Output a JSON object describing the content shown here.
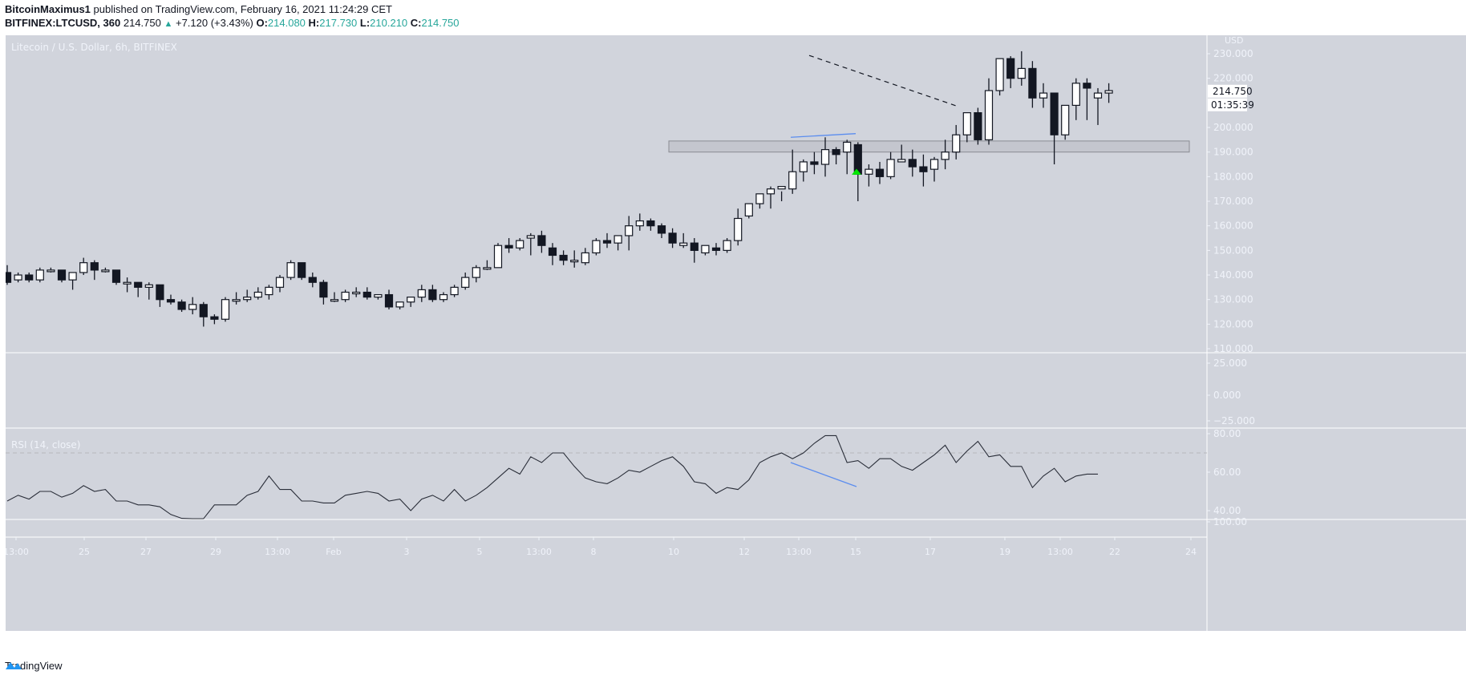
{
  "header": {
    "author": "BitcoinMaximus1",
    "published_text": " published on TradingView.com, February 16, 2021 11:24:29 CET",
    "symbol": "BITFINEX:LTCUSD, 360",
    "last": "214.750",
    "change": "+7.120 (+3.43%)",
    "o_label": "O:",
    "o_value": "214.080",
    "h_label": "H:",
    "h_value": "217.730",
    "l_label": "L:",
    "l_value": "210.210",
    "c_label": "C:",
    "c_value": "214.750"
  },
  "main_pane": {
    "legend": "Litecoin / U.S. Dollar, 6h, BITFINEX",
    "currency": "USD",
    "price_ticks": [
      "230.000",
      "220.000",
      "200.000",
      "190.000",
      "180.000",
      "170.000",
      "160.000",
      "150.000",
      "140.000",
      "130.000",
      "120.000",
      "110.000"
    ],
    "last_price_label": "214.750",
    "countdown": "01:35:39"
  },
  "middle_pane": {
    "ticks": [
      "25.000",
      "0.000",
      "−25.000"
    ]
  },
  "rsi_pane": {
    "legend": "RSI (14, close)",
    "ticks": [
      "80.00",
      "60.00",
      "40.00",
      "100.00"
    ]
  },
  "time_axis": {
    "labels": [
      {
        "x": 20,
        "t": "13:00"
      },
      {
        "x": 105,
        "t": "25"
      },
      {
        "x": 182,
        "t": "27"
      },
      {
        "x": 269,
        "t": "29"
      },
      {
        "x": 346,
        "t": "13:00"
      },
      {
        "x": 416,
        "t": "Feb"
      },
      {
        "x": 507,
        "t": "3"
      },
      {
        "x": 598,
        "t": "5"
      },
      {
        "x": 672,
        "t": "13:00"
      },
      {
        "x": 740,
        "t": "8"
      },
      {
        "x": 840,
        "t": "10"
      },
      {
        "x": 928,
        "t": "12"
      },
      {
        "x": 996,
        "t": "13:00"
      },
      {
        "x": 1067,
        "t": "15"
      },
      {
        "x": 1160,
        "t": "17"
      },
      {
        "x": 1253,
        "t": "19"
      },
      {
        "x": 1322,
        "t": "13:00"
      },
      {
        "x": 1390,
        "t": "22"
      },
      {
        "x": 1485,
        "t": "24"
      }
    ]
  },
  "footer": {
    "brand": "TradingView"
  },
  "colors": {
    "background": "#d1d4dc",
    "up_candle": "#ffffff",
    "down_candle": "#131722",
    "accent_green": "#26a69a",
    "arrow_green": "#00e600",
    "divergence_line": "#5b8def",
    "support_zone": "#c4c6ce"
  },
  "chart_data": {
    "type": "candlestick",
    "title": "Litecoin / U.S. Dollar, 6h, BITFINEX",
    "symbol": "BITFINEX:LTCUSD",
    "timeframe": "6h",
    "ylabel": "USD",
    "ylim": [
      107,
      233
    ],
    "candles": [
      [
        141,
        144,
        136,
        137
      ],
      [
        138,
        141,
        137,
        140
      ],
      [
        140,
        141,
        137,
        138
      ],
      [
        138,
        143,
        137,
        142
      ],
      [
        142,
        143,
        141,
        142
      ],
      [
        142,
        142,
        137,
        138
      ],
      [
        138,
        141,
        134,
        141
      ],
      [
        141,
        147,
        140,
        145
      ],
      [
        145,
        146,
        138,
        142
      ],
      [
        142,
        143,
        141,
        142
      ],
      [
        142,
        142,
        136,
        137
      ],
      [
        137,
        139,
        133,
        137
      ],
      [
        137,
        137,
        131,
        135
      ],
      [
        135,
        137,
        130,
        136
      ],
      [
        136,
        136,
        127,
        130
      ],
      [
        130,
        132,
        128,
        129
      ],
      [
        129,
        130,
        125,
        126
      ],
      [
        126,
        131,
        124,
        128
      ],
      [
        128,
        129,
        119,
        123
      ],
      [
        123,
        124,
        120,
        122
      ],
      [
        122,
        131,
        121,
        130
      ],
      [
        130,
        133,
        128,
        130
      ],
      [
        130,
        134,
        129,
        131
      ],
      [
        131,
        135,
        130,
        133
      ],
      [
        132,
        136,
        130,
        135
      ],
      [
        135,
        140,
        133,
        139
      ],
      [
        139,
        146,
        138,
        145
      ],
      [
        145,
        145,
        138,
        139
      ],
      [
        139,
        141,
        135,
        137
      ],
      [
        137,
        138,
        128,
        131
      ],
      [
        130,
        133,
        129,
        130
      ],
      [
        130,
        134,
        129,
        133
      ],
      [
        133,
        135,
        131,
        133
      ],
      [
        133,
        135,
        130,
        131
      ],
      [
        131,
        132,
        130,
        132
      ],
      [
        132,
        134,
        126,
        127
      ],
      [
        127,
        129,
        126,
        129
      ],
      [
        129,
        131,
        127,
        131
      ],
      [
        131,
        136,
        129,
        134
      ],
      [
        134,
        136,
        129,
        130
      ],
      [
        130,
        133,
        129,
        132
      ],
      [
        132,
        136,
        131,
        135
      ],
      [
        135,
        141,
        134,
        139
      ],
      [
        139,
        144,
        137,
        143
      ],
      [
        143,
        146,
        142,
        143
      ],
      [
        143,
        153,
        143,
        152
      ],
      [
        152,
        155,
        149,
        151
      ],
      [
        151,
        155,
        150,
        154
      ],
      [
        155,
        157,
        148,
        156
      ],
      [
        156,
        158,
        149,
        152
      ],
      [
        151,
        153,
        144,
        148
      ],
      [
        148,
        150,
        144,
        146
      ],
      [
        146,
        150,
        143,
        146
      ],
      [
        145,
        151,
        144,
        149
      ],
      [
        149,
        155,
        148,
        154
      ],
      [
        154,
        157,
        151,
        153
      ],
      [
        153,
        156,
        150,
        156
      ],
      [
        156,
        164,
        150,
        160
      ],
      [
        160,
        165,
        158,
        162
      ],
      [
        162,
        163,
        158,
        160
      ],
      [
        160,
        161,
        155,
        157
      ],
      [
        157,
        159,
        151,
        153
      ],
      [
        152,
        157,
        151,
        153
      ],
      [
        153,
        155,
        145,
        150
      ],
      [
        149,
        152,
        148,
        152
      ],
      [
        151,
        153,
        148,
        150
      ],
      [
        150,
        155,
        149,
        154
      ],
      [
        154,
        167,
        152,
        163
      ],
      [
        164,
        168,
        163,
        169
      ],
      [
        169,
        173,
        167,
        173
      ],
      [
        173,
        176,
        167,
        175
      ],
      [
        175,
        174,
        170,
        176
      ],
      [
        175,
        191,
        173,
        182
      ],
      [
        182,
        187,
        178,
        186
      ],
      [
        186,
        190,
        181,
        185
      ],
      [
        185,
        196,
        180,
        191
      ],
      [
        191,
        192,
        185,
        189
      ],
      [
        190,
        195,
        181,
        194
      ],
      [
        193,
        194,
        170,
        181
      ],
      [
        181,
        185,
        176,
        183
      ],
      [
        183,
        186,
        177,
        180
      ],
      [
        180,
        190,
        179,
        187
      ],
      [
        186,
        193,
        186,
        187
      ],
      [
        187,
        191,
        180,
        184
      ],
      [
        184,
        189,
        176,
        182
      ],
      [
        183,
        188,
        178,
        187
      ],
      [
        187,
        195,
        183,
        190
      ],
      [
        190,
        201,
        187,
        197
      ],
      [
        197,
        206,
        194,
        206
      ],
      [
        206,
        208,
        193,
        195
      ],
      [
        195,
        220,
        193,
        215
      ],
      [
        215,
        227,
        213,
        228
      ],
      [
        228,
        229,
        216,
        220
      ],
      [
        220,
        231,
        217,
        224
      ],
      [
        224,
        227,
        208,
        212
      ],
      [
        212,
        218,
        208,
        214
      ],
      [
        214,
        213,
        185,
        197
      ],
      [
        197,
        209,
        195,
        209
      ],
      [
        209,
        220,
        203,
        218
      ],
      [
        218,
        220,
        203,
        216
      ],
      [
        212,
        216,
        201,
        214
      ],
      [
        214,
        218,
        210,
        215
      ]
    ],
    "annotations": {
      "descending_trendline": {
        "from": [
          1009,
          229
        ],
        "to": [
          1195,
          207
        ],
        "style": "dashed"
      },
      "support_zone": {
        "from_price": 190,
        "to_price": 194.5
      },
      "price_divergence_line": {
        "from_price": 196,
        "to_price": 197.5
      },
      "rsi_divergence_line": {
        "from": 65,
        "to": 52
      },
      "green_arrow_at_price": 184
    },
    "rsi": [
      45,
      48,
      46,
      50,
      50,
      47,
      49,
      53,
      50,
      51,
      45,
      45,
      43,
      43,
      42,
      38,
      36,
      35,
      34,
      43,
      43,
      43,
      48,
      50,
      58,
      51,
      51,
      45,
      45,
      44,
      44,
      48,
      49,
      50,
      49,
      45,
      46,
      40,
      46,
      48,
      45,
      51,
      45,
      48,
      52,
      57,
      62,
      59,
      68,
      65,
      70,
      70,
      63,
      57,
      55,
      54,
      57,
      61,
      60,
      63,
      66,
      68,
      63,
      55,
      54,
      49,
      52,
      51,
      56,
      65,
      68,
      70,
      67,
      70,
      75,
      79,
      79,
      65,
      66,
      62,
      67,
      67,
      63,
      61,
      65,
      69,
      74,
      65,
      71,
      76,
      68,
      69,
      63,
      63,
      52,
      58,
      62,
      55,
      58,
      59,
      59
    ],
    "rsi_ylim": [
      28,
      84
    ]
  }
}
